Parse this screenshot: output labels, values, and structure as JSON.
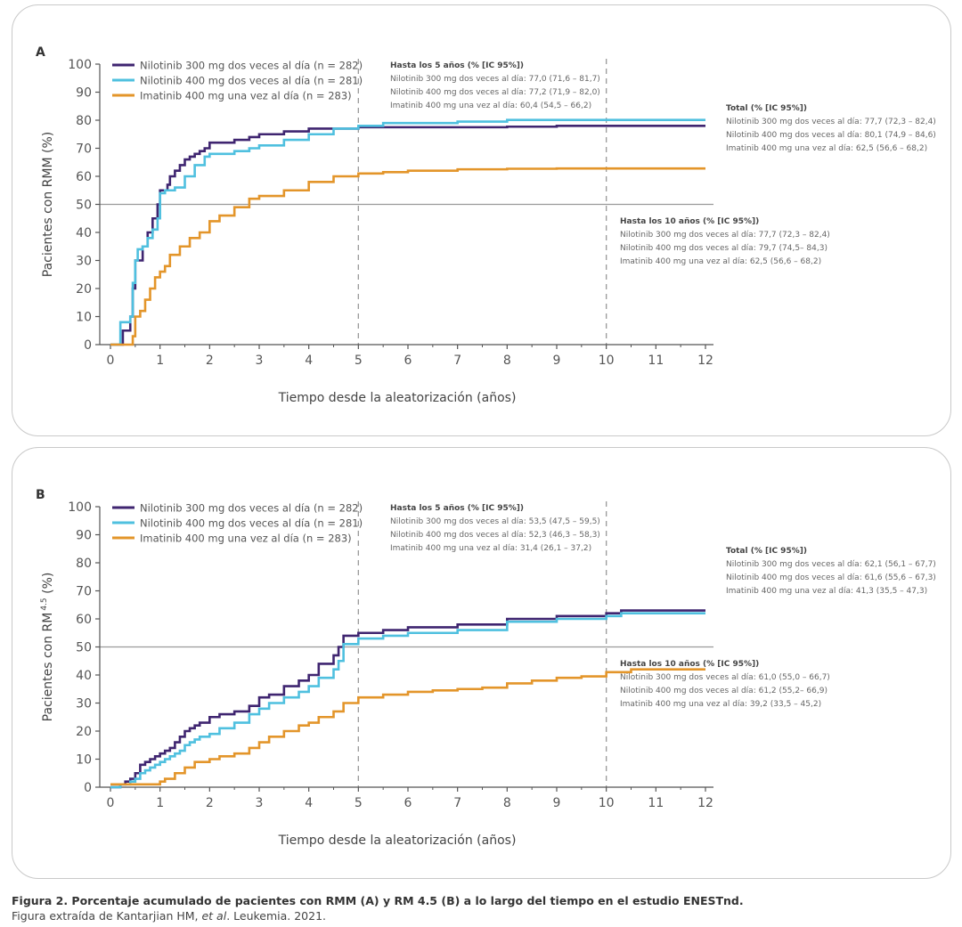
{
  "colors": {
    "nil300": "#3f2570",
    "nil400": "#4fc0df",
    "ima400": "#e3952a",
    "grid": "#999999",
    "text": "#555555"
  },
  "caption": {
    "line1": "Figura 2. Porcentaje acumulado de pacientes con RMM (A) y RM 4.5 (B) a lo largo del tiempo en el estudio ENESTnd.",
    "line2_prefix": "Figura extraída de Kantarjian HM, ",
    "line2_italic": "et al",
    "line2_suffix": ". Leukemia. 2021."
  },
  "chart_data": [
    {
      "type": "line",
      "panel_label": "A",
      "ylabel": "Pacientes con RMM (%)",
      "xlabel": "Tiempo desde la aleatorización (años)",
      "xlim": [
        0,
        12
      ],
      "ylim": [
        0,
        100
      ],
      "xticks": [
        "0",
        "1",
        "2",
        "3",
        "4",
        "5",
        "6",
        "7",
        "8",
        "9",
        "10",
        "11",
        "12"
      ],
      "yticks": [
        "0",
        "10",
        "20",
        "30",
        "40",
        "50",
        "60",
        "70",
        "80",
        "90",
        "100"
      ],
      "reference_line_y": 50,
      "vlines_x": [
        5,
        10
      ],
      "legend": [
        {
          "label": "Nilotinib 300 mg dos veces al día (n = 282)",
          "color": "#3f2570"
        },
        {
          "label": "Nilotinib 400 mg dos veces al día (n = 281)",
          "color": "#4fc0df"
        },
        {
          "label": "Imatinib 400 mg una vez al día (n = 283)",
          "color": "#e3952a"
        }
      ],
      "series": [
        {
          "name": "Nilotinib 300 mg dos veces al día",
          "color": "#3f2570",
          "x": [
            0,
            0.25,
            0.3,
            0.4,
            0.45,
            0.5,
            0.55,
            0.65,
            0.75,
            0.85,
            0.95,
            1.0,
            1.15,
            1.2,
            1.3,
            1.4,
            1.5,
            1.6,
            1.7,
            1.8,
            1.9,
            2.0,
            2.2,
            2.5,
            2.8,
            3.0,
            3.5,
            4.0,
            4.5,
            5.0,
            6.0,
            7.0,
            8.0,
            9.0,
            10.0,
            12.0
          ],
          "y": [
            0,
            5,
            5,
            10,
            20,
            30,
            30,
            35,
            40,
            45,
            50,
            55,
            57,
            60,
            62,
            64,
            66,
            67,
            68,
            69,
            70,
            72,
            72,
            73,
            74,
            75,
            76,
            77,
            77,
            77.5,
            77.5,
            77.5,
            77.7,
            78,
            78,
            78
          ]
        },
        {
          "name": "Nilotinib 400 mg dos veces al día",
          "color": "#4fc0df",
          "x": [
            0,
            0.2,
            0.3,
            0.4,
            0.45,
            0.5,
            0.55,
            0.65,
            0.75,
            0.85,
            0.95,
            1.0,
            1.1,
            1.2,
            1.3,
            1.5,
            1.7,
            1.9,
            2.0,
            2.2,
            2.5,
            2.8,
            3.0,
            3.5,
            4.0,
            4.5,
            5.0,
            5.5,
            6.0,
            7.0,
            8.0,
            9.0,
            10.0,
            12.0
          ],
          "y": [
            0,
            8,
            8,
            10,
            22,
            30,
            34,
            35,
            38,
            41,
            45,
            54,
            55,
            55,
            56,
            60,
            64,
            67,
            68,
            68,
            69,
            70,
            71,
            73,
            75,
            77,
            78,
            79,
            79,
            79.5,
            80.1,
            80.1,
            80.1,
            80.1
          ]
        },
        {
          "name": "Imatinib 400 mg una vez al día",
          "color": "#e3952a",
          "x": [
            0,
            0.4,
            0.45,
            0.5,
            0.6,
            0.7,
            0.8,
            0.9,
            1.0,
            1.1,
            1.2,
            1.4,
            1.6,
            1.8,
            2.0,
            2.2,
            2.5,
            2.8,
            3.0,
            3.5,
            4.0,
            4.5,
            5.0,
            5.5,
            6.0,
            7.0,
            8.0,
            9.0,
            10.0,
            12.0
          ],
          "y": [
            0,
            0,
            3,
            10,
            12,
            16,
            20,
            24,
            26,
            28,
            32,
            35,
            38,
            40,
            44,
            46,
            49,
            52,
            53,
            55,
            58,
            60,
            61,
            61.5,
            62,
            62.5,
            62.7,
            62.8,
            62.8,
            62.8
          ]
        }
      ],
      "annotations": [
        {
          "title": "Hasta los 5 años (% [IC 95%])",
          "anchor": "upper-middle",
          "lines": [
            "Nilotinib 300 mg dos veces al día: 77,0 (71,6 – 81,7)",
            "Nilotinib 400 mg dos veces al día: 77,2 (71,9 – 82,0)",
            "Imatinib 400 mg una vez al día: 60,4 (54,5 – 66,2)"
          ]
        },
        {
          "title": "Total (% [IC 95%])",
          "anchor": "right-upper",
          "lines": [
            "Nilotinib 300 mg dos veces al día: 77,7 (72,3 – 82,4)",
            "Nilotinib 400 mg dos veces al día: 80,1 (74,9 – 84,6)",
            "Imatinib 400 mg una vez al día: 62,5 (56,6 – 68,2)"
          ]
        },
        {
          "title": "Hasta los 10 años (% [IC 95%])",
          "anchor": "right-middle",
          "lines": [
            "Nilotinib 300 mg dos veces al día: 77,7 (72,3 – 82,4)",
            "Nilotinib 400 mg dos veces al día: 79,7 (74,5– 84,3)",
            "Imatinib 400 mg una vez al día: 62,5 (56,6 – 68,2)"
          ]
        }
      ]
    },
    {
      "type": "line",
      "panel_label": "B",
      "ylabel_main": "Pacientes con RM",
      "ylabel_sup": "4.5",
      "ylabel_tail": " (%)",
      "xlabel": "Tiempo desde la aleatorización (años)",
      "xlim": [
        0,
        12
      ],
      "ylim": [
        0,
        100
      ],
      "xticks": [
        "0",
        "1",
        "2",
        "3",
        "4",
        "5",
        "6",
        "7",
        "8",
        "9",
        "10",
        "11",
        "12"
      ],
      "yticks": [
        "0",
        "10",
        "20",
        "30",
        "40",
        "50",
        "60",
        "70",
        "80",
        "90",
        "100"
      ],
      "reference_line_y": 50,
      "vlines_x": [
        5,
        10
      ],
      "legend": [
        {
          "label": "Nilotinib 300 mg dos veces al día (n = 282)",
          "color": "#3f2570"
        },
        {
          "label": "Nilotinib 400 mg dos veces al día (n = 281)",
          "color": "#4fc0df"
        },
        {
          "label": "Imatinib 400 mg una vez al día (n = 283)",
          "color": "#e3952a"
        }
      ],
      "series": [
        {
          "name": "Nilotinib 300 mg dos veces al día",
          "color": "#3f2570",
          "x": [
            0,
            0.2,
            0.3,
            0.4,
            0.5,
            0.6,
            0.7,
            0.8,
            0.9,
            1.0,
            1.1,
            1.2,
            1.3,
            1.4,
            1.5,
            1.6,
            1.7,
            1.8,
            2.0,
            2.2,
            2.5,
            2.8,
            3.0,
            3.2,
            3.5,
            3.8,
            4.0,
            4.2,
            4.5,
            4.6,
            4.7,
            5.0,
            5.5,
            6.0,
            7.0,
            8.0,
            9.0,
            10.0,
            10.3,
            12.0
          ],
          "y": [
            0,
            1,
            2,
            3,
            5,
            8,
            9,
            10,
            11,
            12,
            13,
            14,
            16,
            18,
            20,
            21,
            22,
            23,
            25,
            26,
            27,
            29,
            32,
            33,
            36,
            38,
            40,
            44,
            47,
            50,
            54,
            55,
            56,
            57,
            58,
            60,
            61,
            62,
            63,
            63
          ]
        },
        {
          "name": "Nilotinib 400 mg dos veces al día",
          "color": "#4fc0df",
          "x": [
            0,
            0.2,
            0.3,
            0.4,
            0.5,
            0.6,
            0.7,
            0.8,
            0.9,
            1.0,
            1.1,
            1.2,
            1.3,
            1.4,
            1.5,
            1.6,
            1.7,
            1.8,
            2.0,
            2.2,
            2.5,
            2.8,
            3.0,
            3.2,
            3.5,
            3.8,
            4.0,
            4.2,
            4.5,
            4.6,
            4.7,
            5.0,
            5.5,
            6.0,
            7.0,
            8.0,
            9.0,
            10.0,
            10.3,
            12.0
          ],
          "y": [
            0,
            1,
            1,
            2,
            3,
            5,
            6,
            7,
            8,
            9,
            10,
            11,
            12,
            13,
            15,
            16,
            17,
            18,
            19,
            21,
            23,
            26,
            28,
            30,
            32,
            34,
            36,
            39,
            42,
            45,
            51,
            53,
            54,
            55,
            56,
            59,
            60,
            61,
            62,
            62
          ]
        },
        {
          "name": "Imatinib 400 mg una vez al día",
          "color": "#e3952a",
          "x": [
            0,
            0.5,
            0.6,
            0.9,
            1.0,
            1.1,
            1.3,
            1.5,
            1.7,
            2.0,
            2.2,
            2.5,
            2.8,
            3.0,
            3.2,
            3.5,
            3.8,
            4.0,
            4.2,
            4.5,
            4.7,
            5.0,
            5.5,
            6.0,
            6.5,
            7.0,
            7.5,
            8.0,
            8.5,
            9.0,
            9.5,
            10.0,
            10.5,
            12.0
          ],
          "y": [
            1,
            1,
            1,
            1,
            2,
            3,
            5,
            7,
            9,
            10,
            11,
            12,
            14,
            16,
            18,
            20,
            22,
            23,
            25,
            27,
            30,
            32,
            33,
            34,
            34.5,
            35,
            35.5,
            37,
            38,
            39,
            39.5,
            41,
            42,
            42
          ]
        }
      ],
      "annotations": [
        {
          "title": "Hasta los 5 años (% [IC 95%])",
          "anchor": "upper-middle",
          "lines": [
            "Nilotinib 300 mg dos veces al día: 53,5 (47,5 – 59,5)",
            "Nilotinib 400 mg dos veces al día: 52,3 (46,3 – 58,3)",
            "Imatinib 400 mg una vez al día: 31,4 (26,1 – 37,2)"
          ]
        },
        {
          "title": "Total (% [IC 95%])",
          "anchor": "right-upper",
          "lines": [
            "Nilotinib 300 mg dos veces al día: 62,1 (56,1 – 67,7)",
            "Nilotinib 400 mg dos veces al día: 61,6 (55,6 – 67,3)",
            "Imatinib 400 mg una vez al día: 41,3 (35,5 – 47,3)"
          ]
        },
        {
          "title": "Hasta los 10 años (% [IC 95%])",
          "anchor": "right-middle",
          "lines": [
            "Nilotinib 300 mg dos veces al día: 61,0 (55,0 – 66,7)",
            "Nilotinib 400 mg dos veces al día: 61,2 (55,2– 66,9)",
            "Imatinib 400 mg una vez al día: 39,2 (33,5 – 45,2)"
          ]
        }
      ]
    }
  ]
}
